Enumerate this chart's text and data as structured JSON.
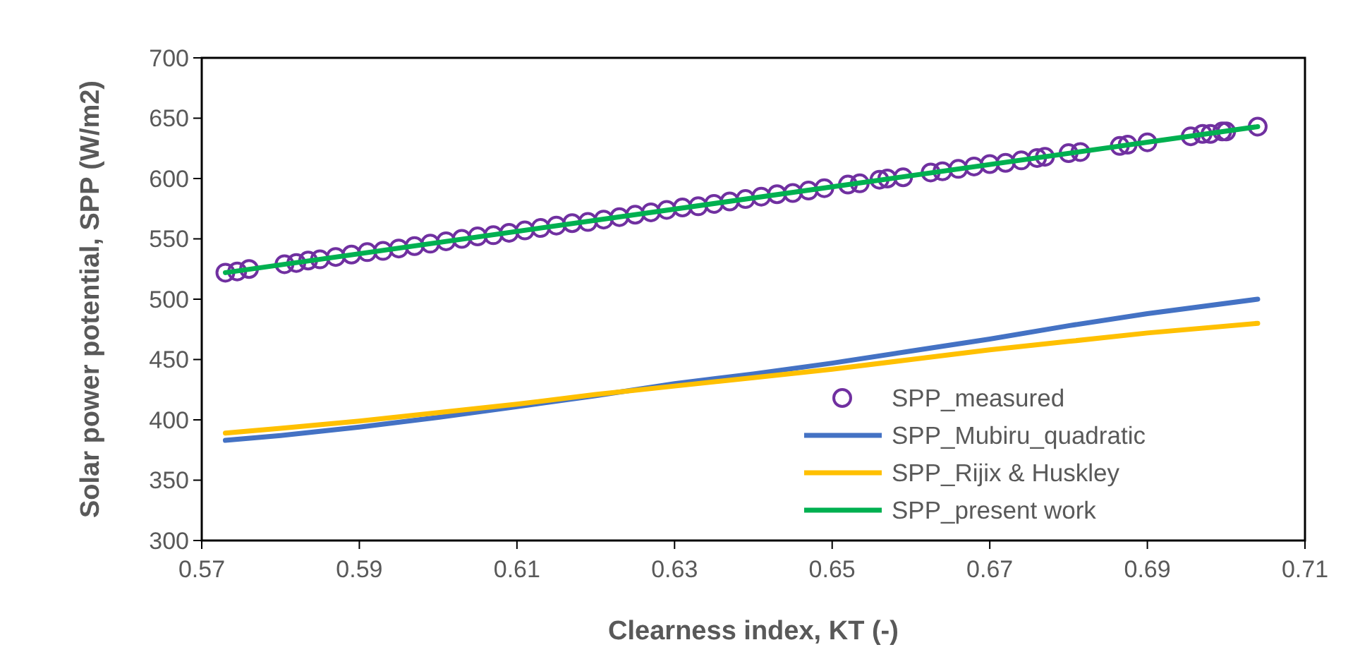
{
  "chart_data": {
    "type": "line",
    "xlabel": "Clearness index, KT (-)",
    "ylabel": "Solar power potential, SPP (W/m2)",
    "xlim": [
      0.57,
      0.71
    ],
    "xticks": [
      0.57,
      0.59,
      0.61,
      0.63,
      0.65,
      0.67,
      0.69,
      0.71
    ],
    "ylim": [
      300,
      700
    ],
    "yticks": [
      300,
      350,
      400,
      450,
      500,
      550,
      600,
      650,
      700
    ],
    "grid": false,
    "legend": "bottom right",
    "series": [
      {
        "name": "SPP_measured",
        "type": "scatter",
        "marker": "circle",
        "color": "#7030a0",
        "x": [
          0.573,
          0.5745,
          0.576,
          0.5805,
          0.582,
          0.5835,
          0.585,
          0.587,
          0.589,
          0.591,
          0.593,
          0.595,
          0.597,
          0.599,
          0.601,
          0.603,
          0.605,
          0.607,
          0.609,
          0.611,
          0.613,
          0.615,
          0.617,
          0.619,
          0.621,
          0.623,
          0.625,
          0.627,
          0.629,
          0.631,
          0.633,
          0.635,
          0.637,
          0.639,
          0.641,
          0.643,
          0.645,
          0.647,
          0.649,
          0.652,
          0.6535,
          0.656,
          0.657,
          0.659,
          0.6625,
          0.664,
          0.666,
          0.668,
          0.67,
          0.672,
          0.674,
          0.676,
          0.677,
          0.68,
          0.6815,
          0.6865,
          0.6875,
          0.69,
          0.6955,
          0.697,
          0.698,
          0.6995,
          0.7,
          0.704
        ],
        "values": [
          522,
          523,
          525,
          529,
          530,
          532,
          533,
          535,
          537,
          539,
          540,
          542,
          544,
          546,
          548,
          550,
          552,
          553,
          555,
          557,
          559,
          561,
          563,
          564,
          566,
          568,
          570,
          572,
          574,
          576,
          577,
          579,
          581,
          583,
          585,
          587,
          588,
          590,
          592,
          595,
          596,
          599,
          600,
          601,
          605,
          606,
          608,
          610,
          612,
          613,
          615,
          617,
          618,
          621,
          622,
          627,
          628,
          630,
          635,
          637,
          637,
          639,
          639,
          643
        ]
      },
      {
        "name": "SPP_Mubiru_quadratic",
        "color": "#4472c4",
        "x": [
          0.573,
          0.58,
          0.59,
          0.6,
          0.61,
          0.62,
          0.63,
          0.64,
          0.65,
          0.66,
          0.67,
          0.68,
          0.69,
          0.704
        ],
        "values": [
          383,
          387,
          394,
          402,
          411,
          420,
          430,
          438,
          447,
          457,
          467,
          478,
          488,
          500
        ]
      },
      {
        "name": "SPP_Rijix & Huskley",
        "color": "#ffc000",
        "x": [
          0.573,
          0.58,
          0.59,
          0.6,
          0.61,
          0.62,
          0.63,
          0.64,
          0.65,
          0.66,
          0.67,
          0.68,
          0.69,
          0.704
        ],
        "values": [
          389,
          393,
          399,
          406,
          413,
          421,
          428,
          435,
          442,
          450,
          458,
          465,
          472,
          480
        ]
      },
      {
        "name": "SPP_present work",
        "color": "#00b050",
        "x": [
          0.573,
          0.704
        ],
        "values": [
          522,
          643
        ]
      }
    ]
  }
}
